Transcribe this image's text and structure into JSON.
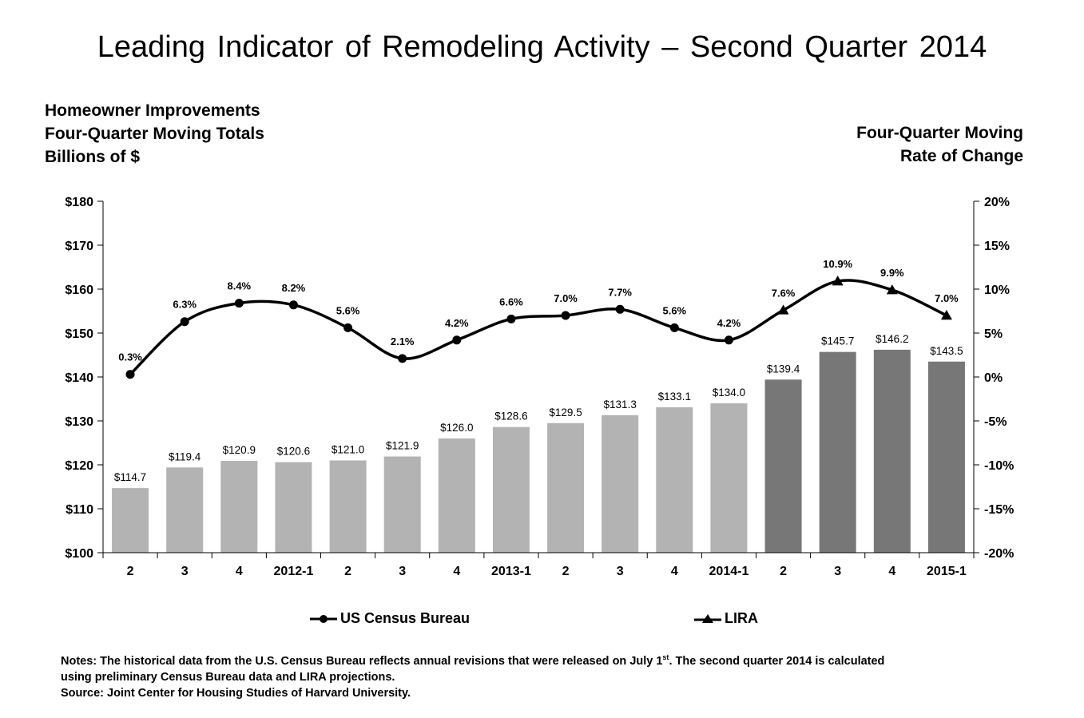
{
  "title": "Leading Indicator of Remodeling Activity – Second Quarter 2014",
  "left_axis_title": [
    "Homeowner Improvements",
    "Four-Quarter Moving Totals",
    "Billions of $"
  ],
  "right_axis_title": [
    "Four-Quarter Moving",
    "Rate of Change"
  ],
  "legend": {
    "census": "US Census Bureau",
    "lira": "LIRA"
  },
  "notes": {
    "line1_before_sup": "Notes: The historical data from the U.S. Census Bureau reflects annual revisions that were released on July 1",
    "line1_sup": "st",
    "line1_after_sup": ". The second quarter 2014 is calculated",
    "line2": "using preliminary Census Bureau data and LIRA projections.",
    "line3": "Source: Joint Center for Housing Studies of Harvard University."
  },
  "colors": {
    "census_bar": "#b3b3b3",
    "lira_bar": "#777777",
    "line": "#000000"
  },
  "chart_data": {
    "type": "bar",
    "categories": [
      "2",
      "3",
      "4",
      "2012-1",
      "2",
      "3",
      "4",
      "2013-1",
      "2",
      "3",
      "4",
      "2014-1",
      "2",
      "3",
      "4",
      "2015-1"
    ],
    "left_axis": {
      "ylim": [
        100,
        180
      ],
      "ticks": [
        "$100",
        "$110",
        "$120",
        "$130",
        "$140",
        "$150",
        "$160",
        "$170",
        "$180"
      ]
    },
    "right_axis": {
      "ylim": [
        -20,
        20
      ],
      "ticks": [
        "-20%",
        "-15%",
        "-10%",
        "-5%",
        "0%",
        "5%",
        "10%",
        "15%",
        "20%"
      ]
    },
    "bars": {
      "values": [
        114.7,
        119.4,
        120.9,
        120.6,
        121.0,
        121.9,
        126.0,
        128.6,
        129.5,
        131.3,
        133.1,
        134.0,
        139.4,
        145.7,
        146.2,
        143.5
      ],
      "labels": [
        "$114.7",
        "$119.4",
        "$120.9",
        "$120.6",
        "$121.0",
        "$121.9",
        "$126.0",
        "$128.6",
        "$129.5",
        "$131.3",
        "$133.1",
        "$134.0",
        "$139.4",
        "$145.7",
        "$146.2",
        "$143.5"
      ],
      "source": [
        "census",
        "census",
        "census",
        "census",
        "census",
        "census",
        "census",
        "census",
        "census",
        "census",
        "census",
        "census",
        "lira",
        "lira",
        "lira",
        "lira"
      ]
    },
    "line": {
      "values": [
        0.3,
        6.3,
        8.4,
        8.2,
        5.6,
        2.1,
        4.2,
        6.6,
        7.0,
        7.7,
        5.6,
        4.2,
        7.6,
        10.9,
        9.9,
        7.0
      ],
      "labels": [
        "0.3%",
        "6.3%",
        "8.4%",
        "8.2%",
        "5.6%",
        "2.1%",
        "4.2%",
        "6.6%",
        "7.0%",
        "7.7%",
        "5.6%",
        "4.2%",
        "7.6%",
        "10.9%",
        "9.9%",
        "7.0%"
      ],
      "census_count": 12
    },
    "grid": false,
    "legend_position": "bottom"
  }
}
